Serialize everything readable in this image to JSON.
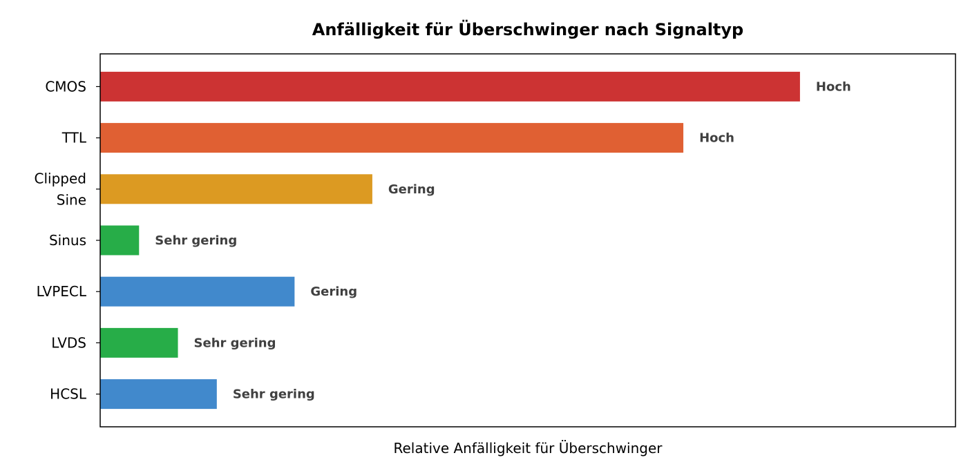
{
  "chart_data": {
    "type": "bar",
    "orientation": "horizontal",
    "title": "Anfälligkeit für Überschwinger nach Signaltyp",
    "xlabel": "Relative Anfälligkeit für Überschwinger",
    "ylabel": "",
    "xlim": [
      0,
      22
    ],
    "x_ticks_shown": false,
    "grid": false,
    "categories": [
      "CMOS",
      "TTL",
      "Clipped\nSine",
      "Sinus",
      "LVPECL",
      "LVDS",
      "HCSL"
    ],
    "values": [
      18,
      15,
      7,
      1,
      5,
      2,
      3
    ],
    "data_labels": [
      "Hoch",
      "Hoch",
      "Gering",
      "Sehr gering",
      "Gering",
      "Sehr gering",
      "Sehr gering"
    ],
    "colors": [
      "#cc3333",
      "#e06033",
      "#dc9a22",
      "#27ad48",
      "#4189cc",
      "#27ad48",
      "#4189cc"
    ]
  }
}
